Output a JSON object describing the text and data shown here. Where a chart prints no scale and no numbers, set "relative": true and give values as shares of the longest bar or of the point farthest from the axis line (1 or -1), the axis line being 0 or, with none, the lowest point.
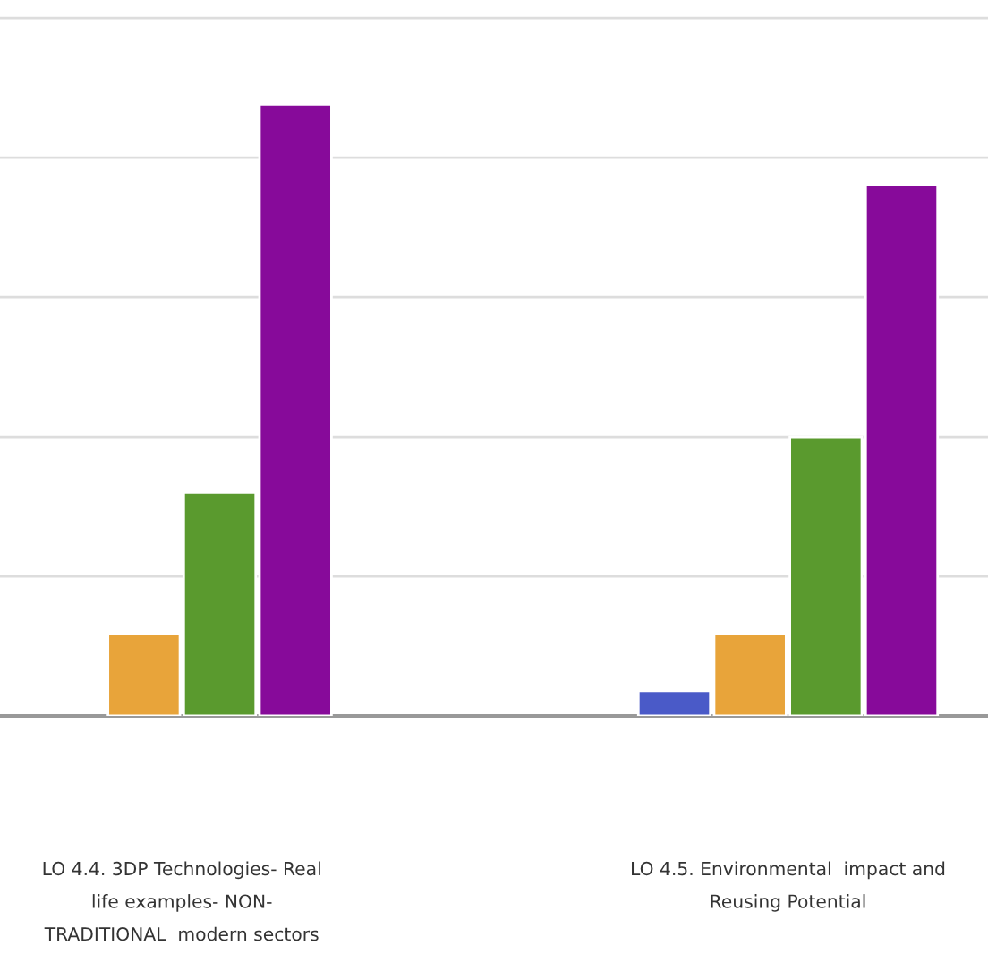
{
  "chart_data": {
    "type": "bar",
    "relative": true,
    "grid": "y",
    "categories": [
      "LO 4.4. 3DP Technologies- Real\nlife examples- NON-\nTRADITIONAL  modern sectors",
      "LO 4.5. Environmental  impact and\nReusing Potential"
    ],
    "series": [
      {
        "color": "#4a5ac8",
        "values": [
          null,
          0.041
        ]
      },
      {
        "color": "#e8a43a",
        "values": [
          0.135,
          0.135
        ]
      },
      {
        "color": "#5a9a2e",
        "values": [
          0.365,
          0.456
        ]
      },
      {
        "color": "#870a9a",
        "values": [
          1,
          0.868
        ]
      }
    ]
  }
}
